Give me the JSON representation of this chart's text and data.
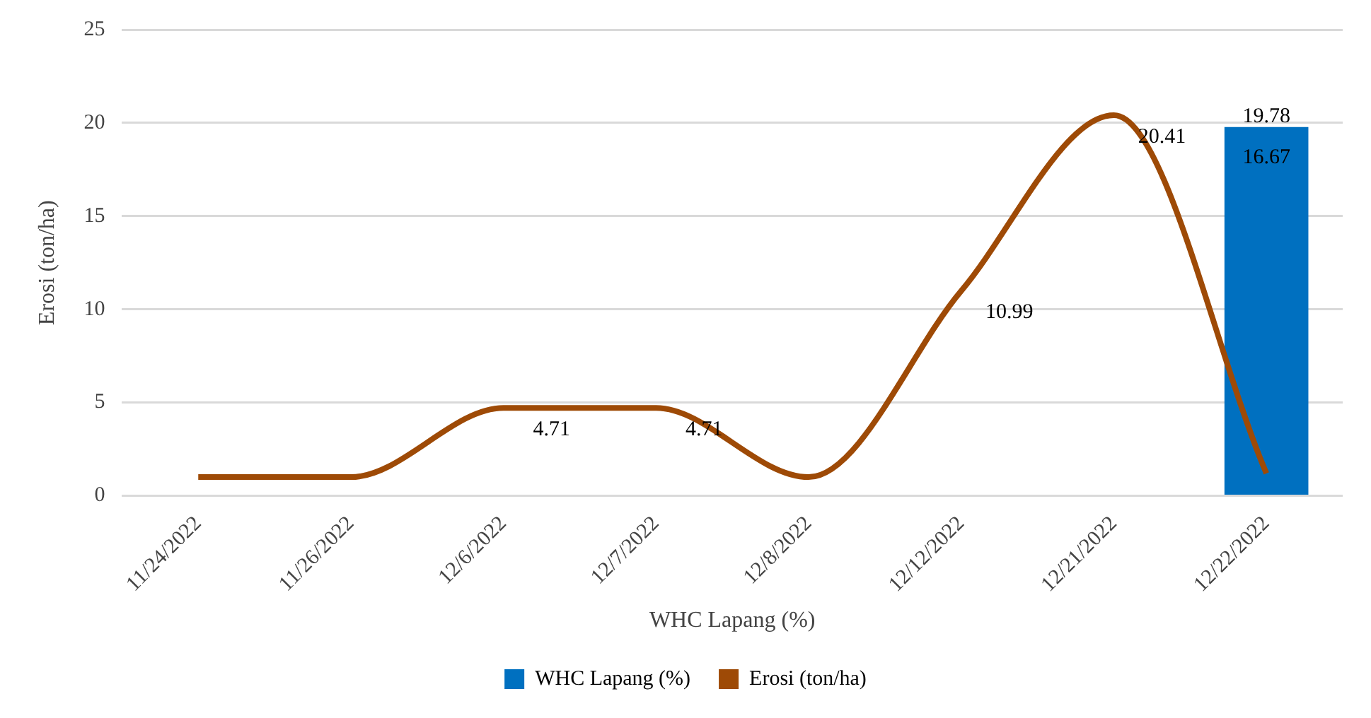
{
  "chart_data": {
    "type": "bar",
    "xlabel": "WHC Lapang (%)",
    "ylabel": "Erosi (ton/ha)",
    "categories": [
      "11/24/2022",
      "11/26/2022",
      "12/6/2022",
      "12/7/2022",
      "12/8/2022",
      "12/12/2022",
      "12/21/2022",
      "12/22/2022"
    ],
    "series": [
      {
        "name": "WHC Lapang (%)",
        "color": "#0070c0",
        "values": [
          null,
          null,
          null,
          null,
          null,
          null,
          null,
          19.78
        ],
        "value_labels": [
          null,
          null,
          null,
          null,
          null,
          null,
          null,
          "19.78"
        ]
      },
      {
        "name": "Erosi (ton/ha)",
        "type": "line",
        "color": "#9e4a06",
        "values": [
          1.0,
          1.0,
          4.71,
          4.71,
          1.0,
          10.99,
          20.41,
          1.2
        ],
        "value_labels": [
          null,
          null,
          "4.71",
          "4.71",
          null,
          "10.99",
          "20.41",
          null
        ]
      }
    ],
    "annotations": [
      "16.67"
    ],
    "ylim": [
      0,
      25
    ],
    "yticks": [
      0,
      5,
      10,
      15,
      20,
      25
    ],
    "grid": "y",
    "legend": "bottom",
    "marker": "none"
  }
}
